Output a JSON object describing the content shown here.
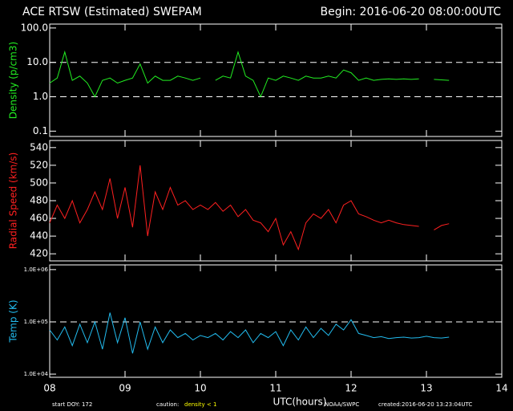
{
  "header": {
    "title": "ACE RTSW (Estimated) SWEPAM",
    "begin": "Begin: 2016-06-20 08:00:00UTC"
  },
  "footer": {
    "start": "start DOY: 172",
    "caution": "caution:",
    "caution_note": "density < 1",
    "source": "NOAA/SWPC",
    "created": "created:2016-06-20 13:23:04UTC"
  },
  "chart_data": [
    {
      "type": "line",
      "ylabel": "Density (p/cm3)",
      "log_y": true,
      "ylim": [
        0.07,
        130
      ],
      "yticks": [
        {
          "value": 100,
          "label": "100.0"
        },
        {
          "value": 10,
          "label": "10.0"
        },
        {
          "value": 1,
          "label": "1.0"
        },
        {
          "value": 0.1,
          "label": "0.1"
        }
      ],
      "hlines": [
        10,
        1
      ],
      "xlim": [
        8,
        14
      ],
      "xticks": [
        8,
        9,
        10,
        11,
        12,
        13,
        14
      ],
      "x": [
        8.0,
        8.1,
        8.2,
        8.3,
        8.4,
        8.5,
        8.6,
        8.7,
        8.8,
        8.9,
        9.0,
        9.1,
        9.2,
        9.3,
        9.4,
        9.5,
        9.6,
        9.7,
        9.8,
        9.9,
        10.0,
        10.1,
        10.2,
        10.3,
        10.4,
        10.5,
        10.6,
        10.7,
        10.8,
        10.9,
        11.0,
        11.1,
        11.2,
        11.3,
        11.4,
        11.5,
        11.6,
        11.7,
        11.8,
        11.9,
        12.0,
        12.1,
        12.2,
        12.3,
        12.4,
        12.5,
        12.6,
        12.7,
        12.8,
        12.9,
        13.0,
        13.1,
        13.2,
        13.3
      ],
      "series": [
        {
          "name": "Density",
          "color": "#22ee22",
          "values": [
            2.5,
            3.5,
            20,
            3,
            4,
            2.5,
            1,
            3,
            3.5,
            2.5,
            3,
            3.5,
            9,
            2.5,
            4,
            3,
            3,
            4,
            3.5,
            3,
            3.5,
            null,
            3,
            4,
            3.5,
            20,
            4,
            3,
            1,
            3.5,
            3,
            4,
            3.5,
            3,
            4,
            3.5,
            3.5,
            4,
            3.5,
            6,
            5,
            3,
            3.5,
            3,
            3.2,
            3.3,
            3.2,
            3.3,
            3.2,
            3.3,
            null,
            3.2,
            3.1,
            3
          ]
        }
      ]
    },
    {
      "type": "line",
      "ylabel": "Radial Speed (km/s)",
      "log_y": false,
      "ylim": [
        412,
        548
      ],
      "yticks": [
        420,
        440,
        460,
        480,
        500,
        520,
        540
      ],
      "xlim": [
        8,
        14
      ],
      "xticks": [
        8,
        9,
        10,
        11,
        12,
        13,
        14
      ],
      "x": [
        8.0,
        8.1,
        8.2,
        8.3,
        8.4,
        8.5,
        8.6,
        8.7,
        8.8,
        8.9,
        9.0,
        9.1,
        9.2,
        9.3,
        9.4,
        9.5,
        9.6,
        9.7,
        9.8,
        9.9,
        10.0,
        10.1,
        10.2,
        10.3,
        10.4,
        10.5,
        10.6,
        10.7,
        10.8,
        10.9,
        11.0,
        11.1,
        11.2,
        11.3,
        11.4,
        11.5,
        11.6,
        11.7,
        11.8,
        11.9,
        12.0,
        12.1,
        12.2,
        12.3,
        12.4,
        12.5,
        12.6,
        12.7,
        12.8,
        12.9,
        13.0,
        13.1,
        13.2,
        13.3
      ],
      "series": [
        {
          "name": "Radial Speed",
          "color": "#ff2020",
          "values": [
            455,
            475,
            460,
            480,
            455,
            470,
            490,
            470,
            505,
            460,
            495,
            450,
            520,
            440,
            490,
            470,
            495,
            475,
            480,
            470,
            475,
            470,
            478,
            468,
            475,
            462,
            470,
            458,
            455,
            445,
            460,
            430,
            445,
            425,
            455,
            465,
            460,
            470,
            455,
            475,
            480,
            465,
            462,
            458,
            455,
            458,
            455,
            453,
            452,
            451,
            null,
            447,
            452,
            454
          ]
        }
      ]
    },
    {
      "type": "line",
      "ylabel": "Temp (K)",
      "log_y": true,
      "ylim": [
        8700,
        1230000
      ],
      "yticks": [
        {
          "value": 1000000,
          "label": "1.0E+06"
        },
        {
          "value": 100000,
          "label": "1.0E+05"
        },
        {
          "value": 10000,
          "label": "1.0E+04"
        }
      ],
      "hlines": [
        100000
      ],
      "xlim": [
        8,
        14
      ],
      "xticks": [
        {
          "value": 8,
          "label": "08"
        },
        {
          "value": 9,
          "label": "09"
        },
        10,
        11,
        12,
        13,
        14
      ],
      "xlabel": "UTC(hours)",
      "x": [
        8.0,
        8.1,
        8.2,
        8.3,
        8.4,
        8.5,
        8.6,
        8.7,
        8.8,
        8.9,
        9.0,
        9.1,
        9.2,
        9.3,
        9.4,
        9.5,
        9.6,
        9.7,
        9.8,
        9.9,
        10.0,
        10.1,
        10.2,
        10.3,
        10.4,
        10.5,
        10.6,
        10.7,
        10.8,
        10.9,
        11.0,
        11.1,
        11.2,
        11.3,
        11.4,
        11.5,
        11.6,
        11.7,
        11.8,
        11.9,
        12.0,
        12.1,
        12.2,
        12.3,
        12.4,
        12.5,
        12.6,
        12.7,
        12.8,
        12.9,
        13.0,
        13.1,
        13.2,
        13.3
      ],
      "series": [
        {
          "name": "Temp",
          "color": "#22bbee",
          "values": [
            70000,
            45000,
            80000,
            35000,
            90000,
            40000,
            100000,
            30000,
            150000,
            40000,
            120000,
            25000,
            100000,
            30000,
            80000,
            40000,
            70000,
            50000,
            60000,
            45000,
            55000,
            50000,
            60000,
            45000,
            65000,
            50000,
            70000,
            40000,
            60000,
            50000,
            65000,
            35000,
            70000,
            45000,
            80000,
            50000,
            75000,
            55000,
            90000,
            70000,
            110000,
            60000,
            55000,
            50000,
            52000,
            48000,
            50000,
            51000,
            49000,
            50000,
            53000,
            50000,
            49000,
            51000
          ]
        }
      ]
    }
  ]
}
